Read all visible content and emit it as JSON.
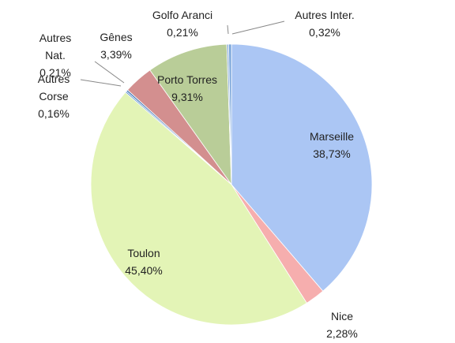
{
  "chart_data": {
    "type": "pie",
    "categories": [
      "Marseille",
      "Nice",
      "Toulon",
      "Autres Corse",
      "Autres Nat.",
      "Gênes",
      "Porto Torres",
      "Golfo Aranci",
      "Autres Inter."
    ],
    "values": [
      38.73,
      2.28,
      45.4,
      0.16,
      0.21,
      3.39,
      9.31,
      0.21,
      0.32
    ],
    "value_labels": [
      "38,73%",
      "2,28%",
      "45,40%",
      "0,16%",
      "0,21%",
      "3,39%",
      "9,31%",
      "0,21%",
      "0,32%"
    ],
    "colors": [
      "#abc6f4",
      "#f6aeae",
      "#e3f4b6",
      "#5b8fd0",
      "#4f81bd",
      "#d38f8f",
      "#b9cd98",
      "#8fb0d9",
      "#7aa6da"
    ]
  }
}
